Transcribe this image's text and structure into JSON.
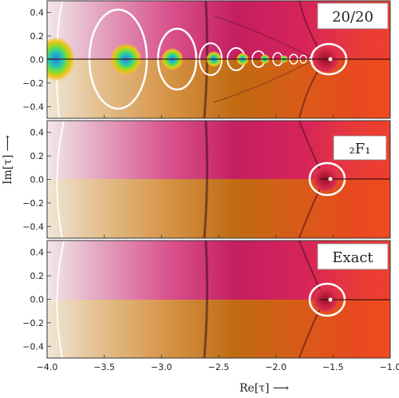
{
  "figure": {
    "x_axis": {
      "label": "Re[τ] ⟶",
      "ticks": [
        "−4.0",
        "−3.5",
        "−3.0",
        "−2.5",
        "−2.0",
        "−1.5",
        "−1.0"
      ],
      "range": [
        -4.0,
        -1.0
      ]
    },
    "y_axis": {
      "label": "Im[τ] ⟶",
      "ticks": [
        "0.4",
        "0.2",
        "0.0",
        "−0.2",
        "−0.4"
      ],
      "range": [
        -0.5,
        0.5
      ]
    },
    "panels": [
      {
        "title": "20/20"
      },
      {
        "title": "₂F₁"
      },
      {
        "title": "Exact"
      }
    ]
  }
}
